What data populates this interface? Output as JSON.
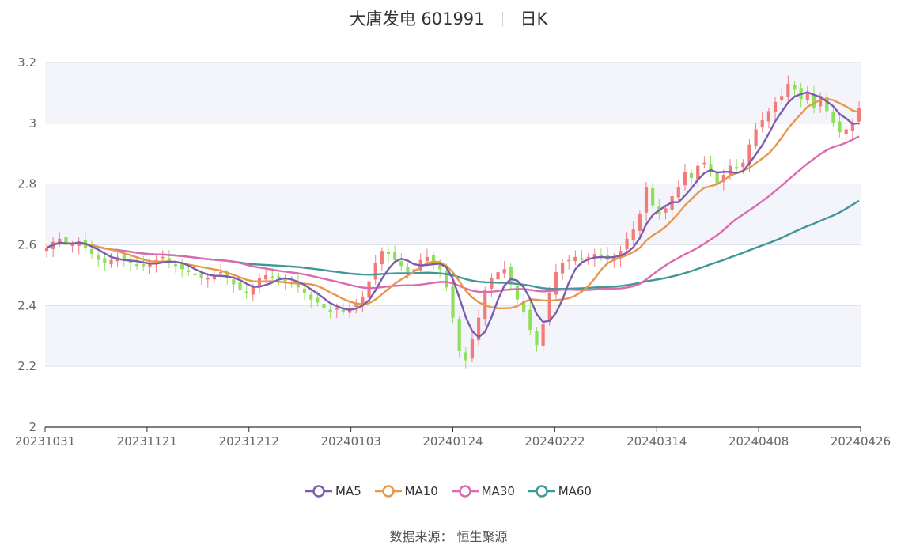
{
  "header": {
    "stock_name": "大唐发电 601991",
    "period": "日K"
  },
  "source": "数据来源： 恒生聚源",
  "colors": {
    "up": "#f47a7a",
    "down": "#8ee05a",
    "ma5": "#7b5cae",
    "ma10": "#e8984a",
    "ma30": "#dc6ab0",
    "ma60": "#3f9797",
    "band": "#f4f5fb",
    "grid": "#dde1ee"
  },
  "chart_data": {
    "type": "candlestick",
    "ylim": [
      2,
      3.2
    ],
    "yticks": [
      "3.2",
      "3",
      "2.8",
      "2.6",
      "2.4",
      "2.2",
      "2"
    ],
    "xticks": [
      "20231031",
      "20231121",
      "20231212",
      "20240103",
      "20240124",
      "20240222",
      "20240314",
      "20240408",
      "20240426"
    ],
    "legend": [
      "MA5",
      "MA10",
      "MA30",
      "MA60"
    ],
    "legend_position": "bottom",
    "close": [
      2.59,
      2.61,
      2.62,
      2.6,
      2.6,
      2.61,
      2.59,
      2.57,
      2.55,
      2.54,
      2.55,
      2.56,
      2.55,
      2.54,
      2.53,
      2.53,
      2.54,
      2.55,
      2.56,
      2.54,
      2.53,
      2.52,
      2.51,
      2.5,
      2.49,
      2.49,
      2.5,
      2.51,
      2.49,
      2.47,
      2.45,
      2.44,
      2.46,
      2.49,
      2.5,
      2.49,
      2.49,
      2.48,
      2.47,
      2.46,
      2.44,
      2.42,
      2.41,
      2.39,
      2.38,
      2.39,
      2.38,
      2.39,
      2.41,
      2.43,
      2.48,
      2.54,
      2.58,
      2.57,
      2.55,
      2.53,
      2.51,
      2.52,
      2.55,
      2.56,
      2.54,
      2.52,
      2.46,
      2.36,
      2.25,
      2.22,
      2.29,
      2.36,
      2.45,
      2.49,
      2.51,
      2.52,
      2.47,
      2.42,
      2.38,
      2.32,
      2.27,
      2.34,
      2.44,
      2.51,
      2.54,
      2.55,
      2.56,
      2.55,
      2.56,
      2.57,
      2.56,
      2.55,
      2.56,
      2.58,
      2.62,
      2.65,
      2.7,
      2.79,
      2.73,
      2.7,
      2.72,
      2.76,
      2.79,
      2.84,
      2.82,
      2.86,
      2.87,
      2.84,
      2.8,
      2.83,
      2.86,
      2.85,
      2.87,
      2.93,
      2.98,
      3.01,
      3.04,
      3.07,
      3.09,
      3.13,
      3.11,
      3.08,
      3.1,
      3.05,
      3.09,
      3.04,
      3,
      2.97,
      2.98,
      3,
      3.05
    ]
  }
}
